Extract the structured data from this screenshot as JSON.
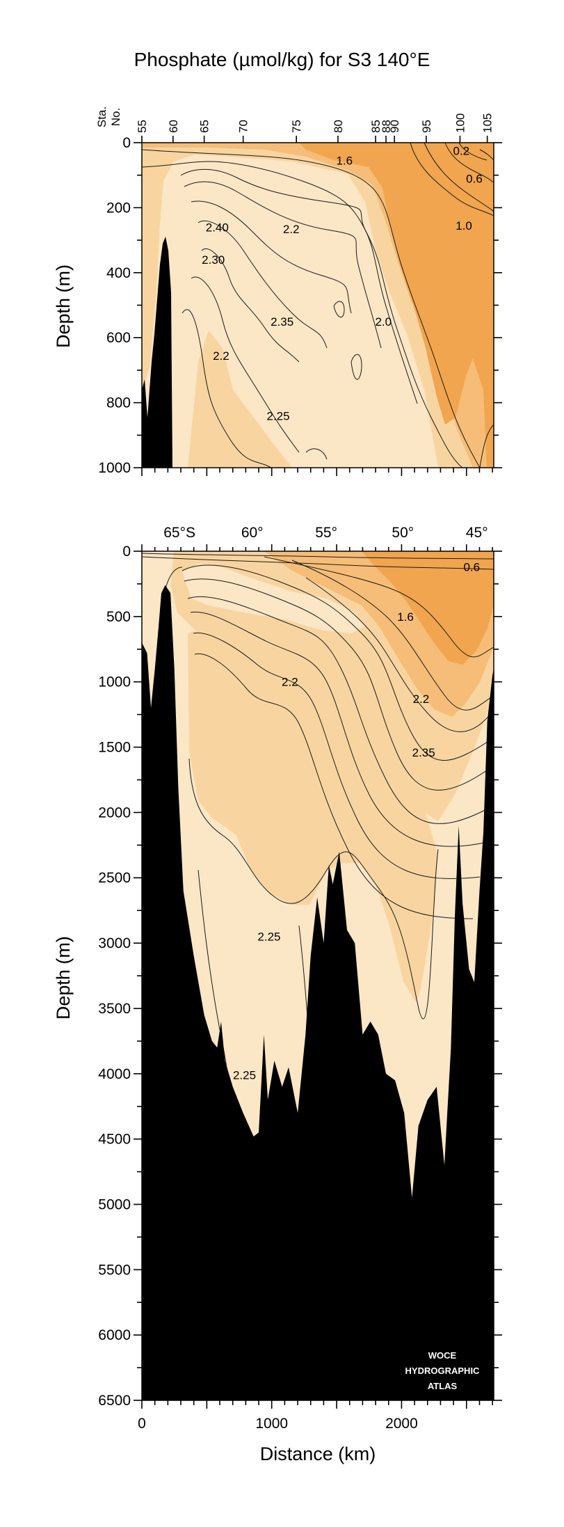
{
  "chart_data": {
    "type": "contour",
    "title": "Phosphate (µmol/kg) for S3 140°E",
    "xlabel": "Distance (km)",
    "ylabel": "Depth (m)",
    "watermark": [
      "WOCE",
      "HYDROGRAPHIC",
      "ATLAS"
    ],
    "colors": {
      "pale": "#fbe6c6",
      "light": "#f8d5a0",
      "mid": "#f5bd77",
      "dark": "#f0a54e",
      "bathymetry": "#000000"
    },
    "stations": {
      "label_line1": "Sta.",
      "label_line2": "No.",
      "numbers": [
        55,
        60,
        65,
        70,
        75,
        80,
        85,
        88,
        90,
        95,
        100,
        105
      ],
      "distance_km": [
        0,
        240,
        480,
        780,
        1190,
        1510,
        1800,
        1880,
        1945,
        2190,
        2450,
        2660
      ]
    },
    "panels": [
      {
        "name": "upper",
        "depth_range": [
          0,
          1000
        ],
        "xlim": [
          0,
          2710
        ],
        "y_ticks": [
          0,
          200,
          400,
          600,
          800,
          1000
        ],
        "contour_labels": [
          {
            "text": "1.6",
            "x_km": 1560,
            "depth_m": 55
          },
          {
            "text": "0.2",
            "x_km": 2460,
            "depth_m": 25
          },
          {
            "text": "0.6",
            "x_km": 2560,
            "depth_m": 110
          },
          {
            "text": "1.0",
            "x_km": 2480,
            "depth_m": 255
          },
          {
            "text": "2.40",
            "x_km": 580,
            "depth_m": 260
          },
          {
            "text": "2.2",
            "x_km": 1150,
            "depth_m": 265
          },
          {
            "text": "2.30",
            "x_km": 550,
            "depth_m": 360
          },
          {
            "text": "2.35",
            "x_km": 1080,
            "depth_m": 550
          },
          {
            "text": "2.0",
            "x_km": 1860,
            "depth_m": 550
          },
          {
            "text": "2.2",
            "x_km": 610,
            "depth_m": 655
          },
          {
            "text": "2.25",
            "x_km": 1050,
            "depth_m": 840
          }
        ]
      },
      {
        "name": "lower",
        "depth_range": [
          0,
          6500
        ],
        "xlim": [
          0,
          2710
        ],
        "y_ticks": [
          0,
          500,
          1000,
          1500,
          2000,
          2500,
          3000,
          3500,
          4000,
          4500,
          5000,
          5500,
          6000,
          6500
        ],
        "x_ticks": [
          0,
          1000,
          2000
        ],
        "latitude_labels": [
          {
            "text": "65°S",
            "x_km": 290
          },
          {
            "text": "60°",
            "x_km": 850
          },
          {
            "text": "55°",
            "x_km": 1420
          },
          {
            "text": "50°",
            "x_km": 2010
          },
          {
            "text": "45°",
            "x_km": 2580
          }
        ],
        "contour_labels": [
          {
            "text": "0.6",
            "x_km": 2540,
            "depth_m": 120
          },
          {
            "text": "1.6",
            "x_km": 2030,
            "depth_m": 500
          },
          {
            "text": "2.2",
            "x_km": 1140,
            "depth_m": 1000
          },
          {
            "text": "2.2",
            "x_km": 2150,
            "depth_m": 1130
          },
          {
            "text": "2.35",
            "x_km": 2170,
            "depth_m": 1540
          },
          {
            "text": "2.25",
            "x_km": 980,
            "depth_m": 2950
          },
          {
            "text": "2.25",
            "x_km": 790,
            "depth_m": 4010
          }
        ],
        "bathymetry_depth_m": [
          [
            0,
            700
          ],
          [
            40,
            780
          ],
          [
            70,
            1200
          ],
          [
            100,
            900
          ],
          [
            130,
            560
          ],
          [
            150,
            320
          ],
          [
            180,
            260
          ],
          [
            220,
            320
          ],
          [
            250,
            900
          ],
          [
            280,
            1800
          ],
          [
            320,
            2600
          ],
          [
            400,
            3100
          ],
          [
            480,
            3550
          ],
          [
            540,
            3750
          ],
          [
            580,
            3800
          ],
          [
            610,
            3600
          ],
          [
            640,
            3900
          ],
          [
            700,
            4100
          ],
          [
            780,
            4300
          ],
          [
            860,
            4480
          ],
          [
            900,
            4450
          ],
          [
            940,
            3700
          ],
          [
            970,
            4200
          ],
          [
            1020,
            3900
          ],
          [
            1080,
            4100
          ],
          [
            1130,
            3950
          ],
          [
            1200,
            4300
          ],
          [
            1260,
            3700
          ],
          [
            1300,
            3100
          ],
          [
            1350,
            2650
          ],
          [
            1400,
            3000
          ],
          [
            1440,
            2400
          ],
          [
            1470,
            2550
          ],
          [
            1520,
            2300
          ],
          [
            1580,
            2900
          ],
          [
            1640,
            3000
          ],
          [
            1700,
            3700
          ],
          [
            1760,
            3600
          ],
          [
            1820,
            3700
          ],
          [
            1880,
            4000
          ],
          [
            1950,
            4050
          ],
          [
            2020,
            4300
          ],
          [
            2080,
            4950
          ],
          [
            2130,
            4400
          ],
          [
            2200,
            4200
          ],
          [
            2270,
            4100
          ],
          [
            2330,
            4700
          ],
          [
            2380,
            3800
          ],
          [
            2410,
            2800
          ],
          [
            2440,
            2100
          ],
          [
            2470,
            2700
          ],
          [
            2520,
            3200
          ],
          [
            2560,
            3300
          ],
          [
            2600,
            2600
          ],
          [
            2630,
            2150
          ],
          [
            2660,
            1300
          ],
          [
            2700,
            950
          ],
          [
            2710,
            900
          ]
        ]
      }
    ]
  }
}
